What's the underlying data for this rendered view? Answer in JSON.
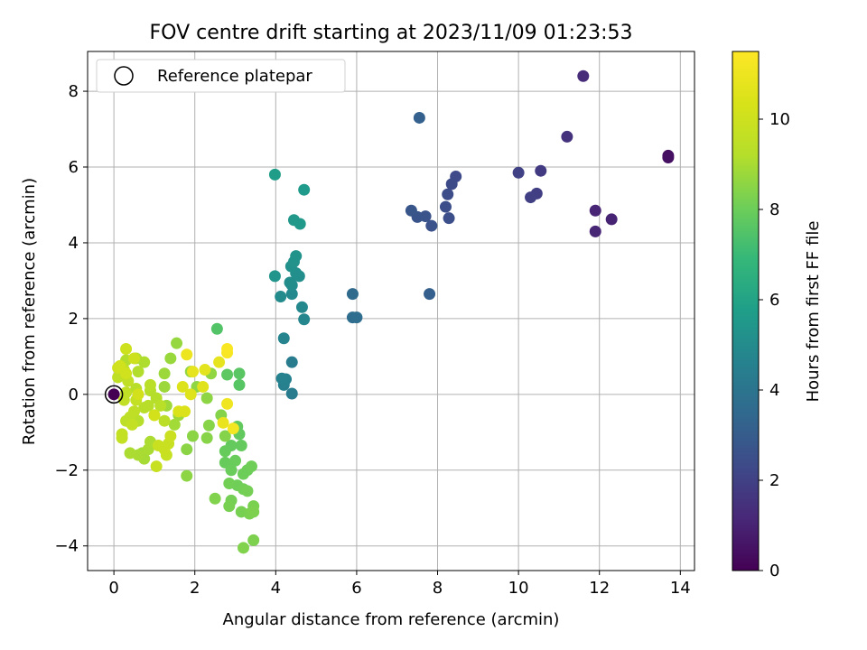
{
  "chart_data": {
    "type": "scatter",
    "title": "FOV centre drift starting at 2023/11/09 01:23:53",
    "xlabel": "Angular distance from reference (arcmin)",
    "ylabel": "Rotation from reference (arcmin)",
    "xlim": [
      -0.65,
      14.35
    ],
    "ylim": [
      -4.65,
      9.05
    ],
    "xticks": [
      0,
      2,
      4,
      6,
      8,
      10,
      12,
      14
    ],
    "yticks": [
      -4,
      -2,
      0,
      2,
      4,
      6,
      8
    ],
    "grid": true,
    "legend": {
      "placement": "top-left",
      "entries": [
        "Reference platepar"
      ]
    },
    "reference_point": {
      "x": 0,
      "y": 0
    },
    "colorbar": {
      "label": "Hours from first FF file",
      "range": [
        0,
        11.5
      ],
      "ticks": [
        0,
        2,
        4,
        6,
        8,
        10
      ],
      "colormap": "viridis"
    },
    "points": [
      {
        "x": 0.0,
        "y": 0.0,
        "t": 0.0
      },
      {
        "x": 13.7,
        "y": 6.3,
        "t": 0.4
      },
      {
        "x": 13.7,
        "y": 6.25,
        "t": 0.45
      },
      {
        "x": 12.3,
        "y": 4.62,
        "t": 1.0
      },
      {
        "x": 11.9,
        "y": 4.85,
        "t": 1.05
      },
      {
        "x": 11.9,
        "y": 4.3,
        "t": 1.1
      },
      {
        "x": 11.6,
        "y": 8.4,
        "t": 1.3
      },
      {
        "x": 11.2,
        "y": 6.8,
        "t": 1.5
      },
      {
        "x": 10.55,
        "y": 5.9,
        "t": 1.8
      },
      {
        "x": 10.45,
        "y": 5.3,
        "t": 1.9
      },
      {
        "x": 10.3,
        "y": 5.2,
        "t": 1.95
      },
      {
        "x": 10.0,
        "y": 5.85,
        "t": 2.0
      },
      {
        "x": 8.45,
        "y": 5.75,
        "t": 2.3
      },
      {
        "x": 8.35,
        "y": 5.55,
        "t": 2.35
      },
      {
        "x": 8.25,
        "y": 5.28,
        "t": 2.4
      },
      {
        "x": 8.2,
        "y": 4.95,
        "t": 2.45
      },
      {
        "x": 8.28,
        "y": 4.65,
        "t": 2.5
      },
      {
        "x": 7.85,
        "y": 4.45,
        "t": 2.6
      },
      {
        "x": 7.7,
        "y": 4.7,
        "t": 2.65
      },
      {
        "x": 7.5,
        "y": 4.68,
        "t": 2.7
      },
      {
        "x": 7.35,
        "y": 4.85,
        "t": 2.75
      },
      {
        "x": 7.55,
        "y": 7.3,
        "t": 3.2
      },
      {
        "x": 7.8,
        "y": 2.65,
        "t": 3.1
      },
      {
        "x": 5.9,
        "y": 2.65,
        "t": 3.6
      },
      {
        "x": 5.9,
        "y": 2.03,
        "t": 3.65
      },
      {
        "x": 6.0,
        "y": 2.03,
        "t": 3.7
      },
      {
        "x": 4.4,
        "y": 0.02,
        "t": 4.3
      },
      {
        "x": 4.4,
        "y": 0.85,
        "t": 4.35
      },
      {
        "x": 4.2,
        "y": 0.25,
        "t": 4.5
      },
      {
        "x": 4.25,
        "y": 0.4,
        "t": 4.55
      },
      {
        "x": 4.15,
        "y": 0.42,
        "t": 4.6
      },
      {
        "x": 4.2,
        "y": 1.48,
        "t": 4.7
      },
      {
        "x": 4.7,
        "y": 1.98,
        "t": 4.8
      },
      {
        "x": 4.65,
        "y": 2.3,
        "t": 4.85
      },
      {
        "x": 4.4,
        "y": 2.65,
        "t": 4.9
      },
      {
        "x": 4.12,
        "y": 2.58,
        "t": 4.95
      },
      {
        "x": 4.4,
        "y": 2.88,
        "t": 5.0
      },
      {
        "x": 4.35,
        "y": 2.95,
        "t": 5.05
      },
      {
        "x": 4.58,
        "y": 3.12,
        "t": 5.1
      },
      {
        "x": 4.5,
        "y": 3.2,
        "t": 5.15
      },
      {
        "x": 4.38,
        "y": 3.38,
        "t": 5.2
      },
      {
        "x": 4.45,
        "y": 3.5,
        "t": 5.25
      },
      {
        "x": 4.5,
        "y": 3.65,
        "t": 5.3
      },
      {
        "x": 3.98,
        "y": 3.12,
        "t": 5.4
      },
      {
        "x": 4.45,
        "y": 4.6,
        "t": 5.5
      },
      {
        "x": 4.6,
        "y": 4.5,
        "t": 5.55
      },
      {
        "x": 4.7,
        "y": 5.4,
        "t": 5.6
      },
      {
        "x": 3.98,
        "y": 5.8,
        "t": 5.7
      },
      {
        "x": 2.55,
        "y": 1.73,
        "t": 7.5
      },
      {
        "x": 3.1,
        "y": 0.25,
        "t": 7.6
      },
      {
        "x": 3.1,
        "y": 0.55,
        "t": 7.65
      },
      {
        "x": 2.8,
        "y": 0.52,
        "t": 7.7
      },
      {
        "x": 3.05,
        "y": -0.85,
        "t": 7.8
      },
      {
        "x": 3.1,
        "y": -1.05,
        "t": 7.8
      },
      {
        "x": 3.15,
        "y": -1.35,
        "t": 7.85
      },
      {
        "x": 2.9,
        "y": -1.35,
        "t": 7.85
      },
      {
        "x": 2.75,
        "y": -1.5,
        "t": 7.9
      },
      {
        "x": 2.75,
        "y": -1.8,
        "t": 7.9
      },
      {
        "x": 3.0,
        "y": -1.75,
        "t": 7.95
      },
      {
        "x": 2.9,
        "y": -2.0,
        "t": 7.95
      },
      {
        "x": 3.2,
        "y": -2.1,
        "t": 8.0
      },
      {
        "x": 3.3,
        "y": -2.0,
        "t": 8.0
      },
      {
        "x": 3.4,
        "y": -1.9,
        "t": 8.05
      },
      {
        "x": 3.05,
        "y": -2.4,
        "t": 8.05
      },
      {
        "x": 2.85,
        "y": -2.35,
        "t": 8.1
      },
      {
        "x": 3.2,
        "y": -2.5,
        "t": 8.1
      },
      {
        "x": 3.3,
        "y": -2.55,
        "t": 8.15
      },
      {
        "x": 2.9,
        "y": -2.8,
        "t": 8.15
      },
      {
        "x": 2.85,
        "y": -2.95,
        "t": 8.2
      },
      {
        "x": 3.15,
        "y": -3.1,
        "t": 8.2
      },
      {
        "x": 3.45,
        "y": -2.95,
        "t": 8.25
      },
      {
        "x": 3.35,
        "y": -3.15,
        "t": 8.25
      },
      {
        "x": 3.45,
        "y": -3.1,
        "t": 8.3
      },
      {
        "x": 3.45,
        "y": -3.85,
        "t": 8.3
      },
      {
        "x": 3.2,
        "y": -4.05,
        "t": 8.35
      },
      {
        "x": 2.5,
        "y": -2.75,
        "t": 8.35
      },
      {
        "x": 2.65,
        "y": -0.55,
        "t": 8.4
      },
      {
        "x": 2.75,
        "y": -1.1,
        "t": 8.4
      },
      {
        "x": 2.35,
        "y": -0.82,
        "t": 8.45
      },
      {
        "x": 2.3,
        "y": -1.15,
        "t": 8.45
      },
      {
        "x": 1.95,
        "y": -1.1,
        "t": 8.5
      },
      {
        "x": 1.8,
        "y": -1.45,
        "t": 8.5
      },
      {
        "x": 1.8,
        "y": -2.15,
        "t": 8.55
      },
      {
        "x": 2.3,
        "y": -0.1,
        "t": 8.55
      },
      {
        "x": 2.05,
        "y": 0.2,
        "t": 8.6
      },
      {
        "x": 2.4,
        "y": 0.55,
        "t": 8.6
      },
      {
        "x": 1.9,
        "y": 0.6,
        "t": 8.65
      },
      {
        "x": 1.55,
        "y": 1.35,
        "t": 8.7
      },
      {
        "x": 1.4,
        "y": 0.95,
        "t": 8.75
      },
      {
        "x": 1.25,
        "y": 0.55,
        "t": 8.8
      },
      {
        "x": 1.25,
        "y": 0.2,
        "t": 8.8
      },
      {
        "x": 1.3,
        "y": -0.3,
        "t": 8.85
      },
      {
        "x": 1.6,
        "y": -0.55,
        "t": 8.85
      },
      {
        "x": 1.5,
        "y": -0.8,
        "t": 8.9
      },
      {
        "x": 0.7,
        "y": -1.55,
        "t": 8.9
      },
      {
        "x": 0.75,
        "y": -1.7,
        "t": 8.95
      },
      {
        "x": 0.6,
        "y": -1.6,
        "t": 9.0
      },
      {
        "x": 0.85,
        "y": -1.45,
        "t": 9.0
      },
      {
        "x": 0.9,
        "y": -1.25,
        "t": 9.05
      },
      {
        "x": 0.4,
        "y": -1.55,
        "t": 9.05
      },
      {
        "x": 0.75,
        "y": 0.85,
        "t": 9.1
      },
      {
        "x": 0.55,
        "y": 0.95,
        "t": 9.1
      },
      {
        "x": 0.6,
        "y": 0.6,
        "t": 9.15
      },
      {
        "x": 0.3,
        "y": 0.9,
        "t": 9.15
      },
      {
        "x": 0.9,
        "y": 0.1,
        "t": 9.2
      },
      {
        "x": 1.05,
        "y": -0.1,
        "t": 9.2
      },
      {
        "x": 0.85,
        "y": -0.3,
        "t": 9.25
      },
      {
        "x": 0.6,
        "y": -0.7,
        "t": 9.25
      },
      {
        "x": 0.75,
        "y": -0.35,
        "t": 9.3
      },
      {
        "x": 0.55,
        "y": 0.15,
        "t": 9.3
      },
      {
        "x": 0.9,
        "y": 0.25,
        "t": 9.35
      },
      {
        "x": 1.15,
        "y": -0.3,
        "t": 9.35
      },
      {
        "x": 1.0,
        "y": -0.55,
        "t": 9.4
      },
      {
        "x": 1.25,
        "y": -0.7,
        "t": 9.4
      },
      {
        "x": 0.4,
        "y": -0.6,
        "t": 9.45
      },
      {
        "x": 0.3,
        "y": -0.7,
        "t": 9.45
      },
      {
        "x": 0.5,
        "y": -0.45,
        "t": 9.5
      },
      {
        "x": 0.1,
        "y": 0.45,
        "t": 9.5
      },
      {
        "x": 0.25,
        "y": 0.65,
        "t": 9.55
      },
      {
        "x": 0.35,
        "y": 0.35,
        "t": 9.55
      },
      {
        "x": 0.3,
        "y": 0.05,
        "t": 9.6
      },
      {
        "x": 0.25,
        "y": -0.15,
        "t": 9.6
      },
      {
        "x": 0.55,
        "y": -0.15,
        "t": 9.65
      },
      {
        "x": 0.45,
        "y": -0.8,
        "t": 9.65
      },
      {
        "x": 0.2,
        "y": -1.15,
        "t": 9.7
      },
      {
        "x": 0.2,
        "y": -1.05,
        "t": 9.7
      },
      {
        "x": 1.3,
        "y": -1.6,
        "t": 9.75
      },
      {
        "x": 1.05,
        "y": -1.9,
        "t": 9.8
      },
      {
        "x": 1.35,
        "y": -1.3,
        "t": 9.8
      },
      {
        "x": 1.25,
        "y": -1.45,
        "t": 9.85
      },
      {
        "x": 1.1,
        "y": -1.35,
        "t": 9.85
      },
      {
        "x": 1.4,
        "y": -1.1,
        "t": 9.9
      },
      {
        "x": 0.3,
        "y": 1.2,
        "t": 10.0
      },
      {
        "x": 0.5,
        "y": 0.95,
        "t": 10.0
      },
      {
        "x": 0.1,
        "y": 0.7,
        "t": 10.05
      },
      {
        "x": 0.15,
        "y": 0.75,
        "t": 10.1
      },
      {
        "x": 0.3,
        "y": 0.55,
        "t": 10.1
      },
      {
        "x": 0.6,
        "y": 0.0,
        "t": 10.15
      },
      {
        "x": 1.0,
        "y": -0.55,
        "t": 10.2
      },
      {
        "x": 1.6,
        "y": -0.45,
        "t": 10.4
      },
      {
        "x": 1.75,
        "y": -0.45,
        "t": 10.45
      },
      {
        "x": 1.7,
        "y": 0.2,
        "t": 10.5
      },
      {
        "x": 1.9,
        "y": 0.0,
        "t": 10.55
      },
      {
        "x": 2.2,
        "y": 0.2,
        "t": 10.6
      },
      {
        "x": 2.25,
        "y": 0.65,
        "t": 10.7
      },
      {
        "x": 1.95,
        "y": 0.6,
        "t": 10.75
      },
      {
        "x": 1.8,
        "y": 1.05,
        "t": 11.0
      },
      {
        "x": 2.6,
        "y": 0.85,
        "t": 10.8
      },
      {
        "x": 2.7,
        "y": -0.75,
        "t": 10.9
      },
      {
        "x": 2.8,
        "y": -0.25,
        "t": 11.1
      },
      {
        "x": 2.95,
        "y": -0.9,
        "t": 11.2
      },
      {
        "x": 2.8,
        "y": 1.1,
        "t": 11.3
      },
      {
        "x": 2.8,
        "y": 1.2,
        "t": 11.4
      }
    ]
  }
}
